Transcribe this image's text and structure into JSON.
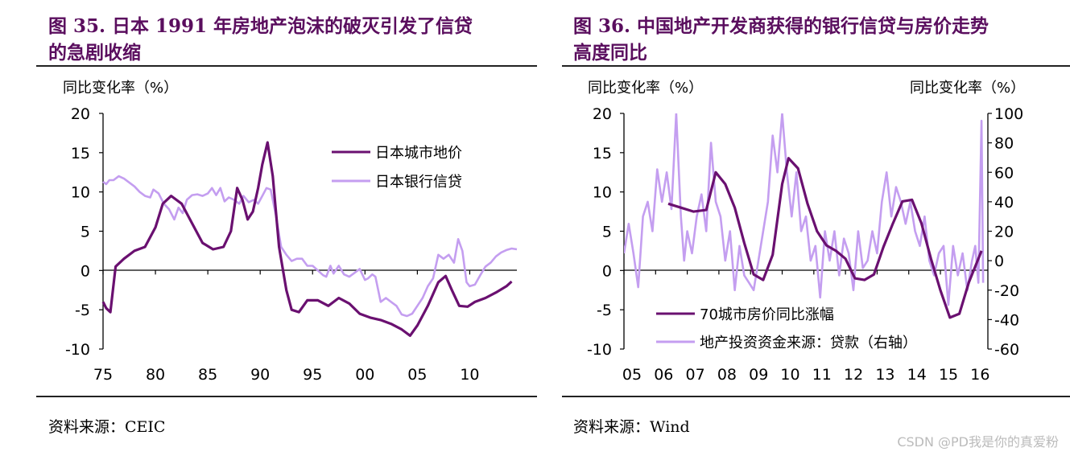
{
  "left": {
    "title_line1": "图 35. 日本 1991 年房地产泡沫的破灭引发了信贷",
    "title_line2": "的急剧收缩",
    "source": "资料来源：CEIC"
  },
  "right": {
    "title_line1": "图 36. 中国地产开发商获得的银行信贷与房价走势",
    "title_line2": "高度同比",
    "source": "资料来源：Wind"
  },
  "watermark": "CSDN @PD我是你的真爱粉",
  "colors": {
    "dark_purple": "#6a1070",
    "light_purple": "#c49ef0",
    "title_purple": "#5a0e5e"
  },
  "chart_data": [
    {
      "type": "line",
      "ylabel": "同比变化率（%）",
      "xlim": [
        1975,
        2014.5
      ],
      "ylim": [
        -10,
        20
      ],
      "yticks": [
        -10,
        -5,
        0,
        5,
        10,
        15,
        20
      ],
      "xticks": [
        1975,
        1980,
        1985,
        1990,
        1995,
        2000,
        2005,
        2010
      ],
      "xtick_labels": [
        "75",
        "80",
        "85",
        "90",
        "95",
        "00",
        "05",
        "10"
      ],
      "grid": false,
      "legend": "upper-right",
      "series": [
        {
          "name": "日本城市地价",
          "color": "#6a1070",
          "x": [
            1975.0,
            1975.3,
            1975.7,
            1976.2,
            1977.0,
            1978.0,
            1979.0,
            1980.0,
            1980.7,
            1981.5,
            1982.5,
            1983.5,
            1984.5,
            1985.5,
            1986.5,
            1987.2,
            1987.8,
            1988.3,
            1988.8,
            1989.3,
            1989.8,
            1990.2,
            1990.7,
            1991.2,
            1991.8,
            1992.5,
            1993.0,
            1993.7,
            1994.5,
            1995.5,
            1996.5,
            1997.5,
            1998.5,
            1999.5,
            2000.5,
            2001.5,
            2002.5,
            2003.5,
            2004.3,
            2005.0,
            2006.0,
            2007.0,
            2007.7,
            2008.3,
            2009.0,
            2009.8,
            2010.5,
            2011.5,
            2012.5,
            2013.5,
            2014.0
          ],
          "y": [
            -4.0,
            -4.8,
            -5.3,
            0.5,
            1.5,
            2.5,
            3.0,
            5.5,
            8.5,
            9.5,
            8.5,
            6.0,
            3.5,
            2.7,
            3.0,
            5.0,
            10.5,
            9.0,
            6.5,
            7.5,
            10.5,
            13.5,
            16.3,
            12.0,
            3.0,
            -2.5,
            -5.0,
            -5.3,
            -3.8,
            -3.8,
            -4.5,
            -3.5,
            -4.2,
            -5.5,
            -6.0,
            -6.3,
            -6.8,
            -7.5,
            -8.3,
            -7.0,
            -4.5,
            -1.5,
            -0.7,
            -2.5,
            -4.5,
            -4.6,
            -4.0,
            -3.5,
            -2.8,
            -2.0,
            -1.4
          ]
        },
        {
          "name": "日本银行信贷",
          "color": "#c49ef0",
          "x": [
            1975.0,
            1975.3,
            1975.6,
            1976.0,
            1976.5,
            1977.0,
            1977.5,
            1978.0,
            1978.5,
            1979.0,
            1979.5,
            1979.8,
            1980.3,
            1980.8,
            1981.3,
            1981.8,
            1982.2,
            1982.6,
            1983.0,
            1983.5,
            1984.0,
            1984.5,
            1985.0,
            1985.4,
            1985.8,
            1986.2,
            1986.6,
            1987.0,
            1987.5,
            1988.0,
            1988.4,
            1988.9,
            1989.4,
            1989.8,
            1990.2,
            1990.6,
            1991.0,
            1991.5,
            1992.0,
            1992.5,
            1993.0,
            1993.5,
            1994.0,
            1994.5,
            1995.0,
            1995.5,
            1996.0,
            1996.3,
            1996.7,
            1997.0,
            1997.5,
            1998.0,
            1998.5,
            1999.0,
            1999.5,
            2000.0,
            2000.3,
            2000.7,
            2001.0,
            2001.5,
            2002.0,
            2002.5,
            2003.0,
            2003.5,
            2004.0,
            2004.5,
            2005.0,
            2005.5,
            2006.0,
            2006.5,
            2007.0,
            2007.5,
            2008.0,
            2008.5,
            2008.9,
            2009.3,
            2009.7,
            2010.0,
            2010.5,
            2011.0,
            2011.5,
            2012.0,
            2012.5,
            2013.0,
            2013.5,
            2014.0,
            2014.5
          ],
          "y": [
            11.3,
            11.0,
            11.5,
            11.5,
            12.0,
            11.7,
            11.2,
            10.7,
            10.0,
            9.5,
            9.3,
            10.3,
            9.8,
            8.5,
            7.8,
            6.5,
            8.0,
            7.3,
            9.0,
            9.6,
            9.7,
            9.5,
            9.8,
            10.5,
            9.6,
            10.5,
            8.8,
            9.3,
            9.0,
            8.5,
            9.5,
            8.7,
            9.0,
            8.5,
            9.5,
            10.5,
            10.3,
            7.0,
            3.0,
            2.0,
            1.2,
            1.5,
            1.5,
            0.6,
            0.6,
            0.0,
            -0.6,
            -0.8,
            0.6,
            -0.4,
            0.6,
            -0.5,
            -0.8,
            -0.3,
            0.2,
            -1.2,
            -1.0,
            -0.5,
            -0.8,
            -4.0,
            -3.5,
            -4.0,
            -4.5,
            -5.6,
            -5.8,
            -5.5,
            -4.5,
            -3.5,
            -2.0,
            -1.0,
            2.0,
            1.5,
            2.0,
            1.0,
            4.0,
            2.5,
            -1.5,
            -2.0,
            -1.8,
            -0.6,
            0.5,
            1.0,
            1.8,
            2.3,
            2.6,
            2.8,
            2.7
          ]
        }
      ]
    },
    {
      "type": "line",
      "ylabel": "同比变化率（%）",
      "ylabel_right": "同比变化率（%）",
      "xlim": [
        2005,
        2016.5
      ],
      "ylim": [
        -10,
        20
      ],
      "ylim_right": [
        -60,
        100
      ],
      "yticks": [
        -10,
        -5,
        0,
        5,
        10,
        15,
        20
      ],
      "yticks_right": [
        -60,
        -40,
        -20,
        0,
        20,
        40,
        60,
        80,
        100
      ],
      "xticks": [
        2005,
        2006,
        2007,
        2008,
        2009,
        2010,
        2011,
        2012,
        2013,
        2014,
        2015,
        2016
      ],
      "xtick_labels": [
        "05",
        "06",
        "07",
        "08",
        "09",
        "10",
        "11",
        "12",
        "13",
        "14",
        "15",
        "16"
      ],
      "grid": false,
      "legend": "lower-left",
      "series": [
        {
          "name": "70城市房价同比涨幅",
          "color": "#6a1070",
          "axis": "left",
          "x": [
            2006.4,
            2006.8,
            2007.2,
            2007.6,
            2007.9,
            2008.2,
            2008.5,
            2008.8,
            2009.1,
            2009.4,
            2009.7,
            2010.0,
            2010.2,
            2010.5,
            2010.8,
            2011.1,
            2011.4,
            2011.7,
            2012.0,
            2012.3,
            2012.6,
            2012.9,
            2013.2,
            2013.5,
            2013.8,
            2014.1,
            2014.4,
            2014.7,
            2015.0,
            2015.3,
            2015.6,
            2015.9,
            2016.2,
            2016.3
          ],
          "y": [
            8.5,
            8.0,
            7.5,
            7.7,
            12.5,
            11.0,
            8.0,
            3.5,
            -0.5,
            -1.2,
            2.0,
            11.0,
            14.3,
            13.0,
            8.5,
            5.0,
            3.2,
            2.5,
            1.5,
            -1.0,
            -1.2,
            -0.5,
            3.0,
            6.0,
            8.8,
            9.0,
            6.0,
            1.5,
            -2.5,
            -6.0,
            -5.5,
            -1.5,
            1.5,
            2.5
          ]
        },
        {
          "name": "地产投资资金来源：贷款（右轴）",
          "color": "#c49ef0",
          "axis": "right",
          "x": [
            2005.0,
            2005.15,
            2005.3,
            2005.45,
            2005.6,
            2005.75,
            2005.9,
            2006.05,
            2006.2,
            2006.35,
            2006.5,
            2006.65,
            2006.8,
            2006.9,
            2007.0,
            2007.15,
            2007.3,
            2007.45,
            2007.6,
            2007.75,
            2007.9,
            2008.05,
            2008.2,
            2008.35,
            2008.5,
            2008.65,
            2008.8,
            2008.95,
            2009.1,
            2009.25,
            2009.4,
            2009.55,
            2009.7,
            2009.85,
            2010.0,
            2010.15,
            2010.3,
            2010.45,
            2010.6,
            2010.75,
            2010.9,
            2011.05,
            2011.2,
            2011.35,
            2011.5,
            2011.65,
            2011.8,
            2011.95,
            2012.1,
            2012.25,
            2012.4,
            2012.55,
            2012.7,
            2012.85,
            2013.0,
            2013.15,
            2013.3,
            2013.45,
            2013.6,
            2013.75,
            2013.9,
            2014.05,
            2014.2,
            2014.35,
            2014.5,
            2014.65,
            2014.8,
            2014.95,
            2015.1,
            2015.25,
            2015.4,
            2015.55,
            2015.7,
            2015.85,
            2016.0,
            2016.1,
            2016.2,
            2016.3,
            2016.35
          ],
          "y": [
            5,
            25,
            5,
            -18,
            30,
            40,
            20,
            62,
            40,
            60,
            35,
            100,
            30,
            0,
            20,
            5,
            30,
            45,
            20,
            80,
            40,
            30,
            0,
            20,
            -20,
            10,
            -10,
            -15,
            -20,
            0,
            20,
            40,
            85,
            60,
            100,
            60,
            30,
            60,
            20,
            30,
            0,
            10,
            -25,
            20,
            0,
            20,
            -10,
            15,
            5,
            -20,
            20,
            -5,
            0,
            20,
            5,
            40,
            60,
            30,
            50,
            40,
            25,
            40,
            20,
            10,
            30,
            0,
            -10,
            5,
            10,
            -30,
            10,
            -10,
            5,
            -20,
            0,
            10,
            -15,
            95,
            -15
          ]
        }
      ]
    }
  ]
}
